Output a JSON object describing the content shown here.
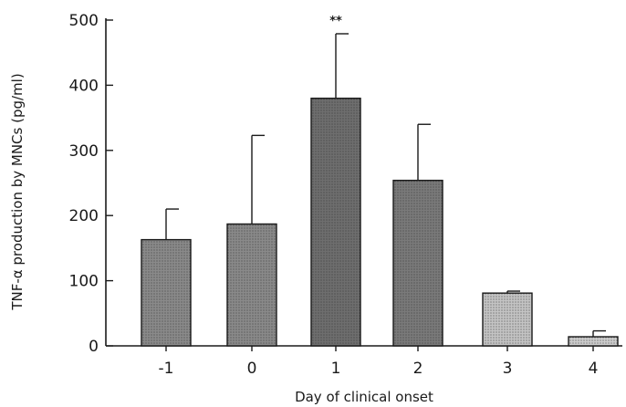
{
  "chart_data": {
    "type": "bar",
    "title": "",
    "xlabel": "Day of clinical onset",
    "ylabel": "TNF-α production by MNCs (pg/ml)",
    "categories": [
      "-1",
      "0",
      "1",
      "2",
      "3",
      "4"
    ],
    "values": [
      163,
      187,
      380,
      254,
      81,
      14
    ],
    "error_upper": [
      210,
      323,
      479,
      340,
      84,
      23
    ],
    "annotations": [
      {
        "category": "1",
        "text": "**"
      }
    ],
    "ylim": [
      0,
      500
    ],
    "yticks": [
      0,
      100,
      200,
      300,
      400,
      500
    ],
    "grid": false,
    "bar_fill_colors": [
      "#8a8a8a",
      "#8a8a8a",
      "#6e6e6e",
      "#7a7a7a",
      "#c4c4c4",
      "#cdcdcd"
    ]
  }
}
